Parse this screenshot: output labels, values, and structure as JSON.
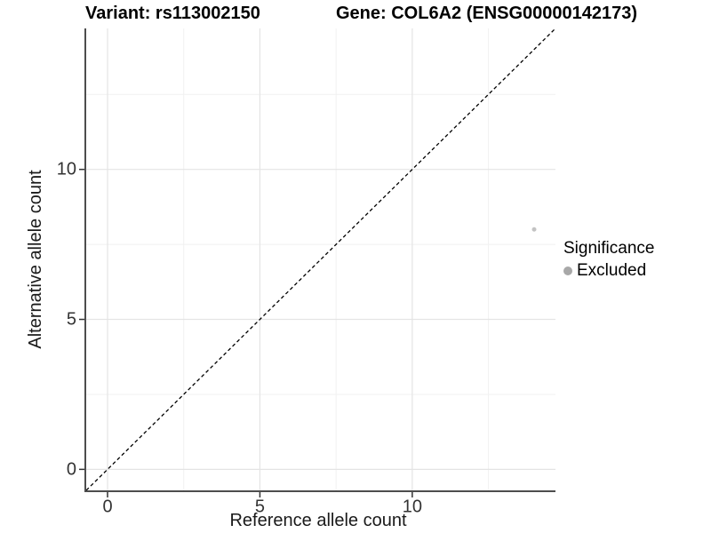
{
  "titles": {
    "variant": "Variant: rs113002150",
    "gene": "Gene: COL6A2 (ENSG00000142173)"
  },
  "colors": {
    "title_text": "#000000",
    "axis_line": "#4d4d4d",
    "tick_mark": "#333333",
    "tick_label": "#333333",
    "axis_title": "#1a1a1a",
    "grid_major": "#e4e4e4",
    "grid_minor": "#f1f1f1",
    "identity_line": "#000000",
    "point": "#c3c3c3",
    "legend_dot": "#a8a8a8"
  },
  "chart_data": {
    "type": "scatter",
    "titles": [
      "Variant: rs113002150",
      "Gene: COL6A2 (ENSG00000142173)"
    ],
    "xlabel": "Reference allele count",
    "ylabel": "Alternative allele count",
    "xlim": [
      -0.7,
      14.7
    ],
    "ylim": [
      -0.7,
      14.7
    ],
    "x_ticks": [
      0,
      5,
      10
    ],
    "y_ticks": [
      0,
      5,
      10
    ],
    "x_minor_ticks": [
      2.5,
      7.5,
      12.5
    ],
    "y_minor_ticks": [
      2.5,
      7.5,
      12.5
    ],
    "grid": true,
    "legend": {
      "title": "Significance",
      "position": "right",
      "entries": [
        "Excluded"
      ]
    },
    "series": [
      {
        "name": "Excluded",
        "color": "#c3c3c3",
        "marker_radius": 2.5,
        "points": [
          {
            "x": 14,
            "y": 8
          }
        ]
      }
    ],
    "reference_line": {
      "type": "identity",
      "from": [
        -0.7,
        -0.7
      ],
      "to": [
        14.7,
        14.7
      ],
      "style": "dashed",
      "color": "#000000"
    }
  }
}
